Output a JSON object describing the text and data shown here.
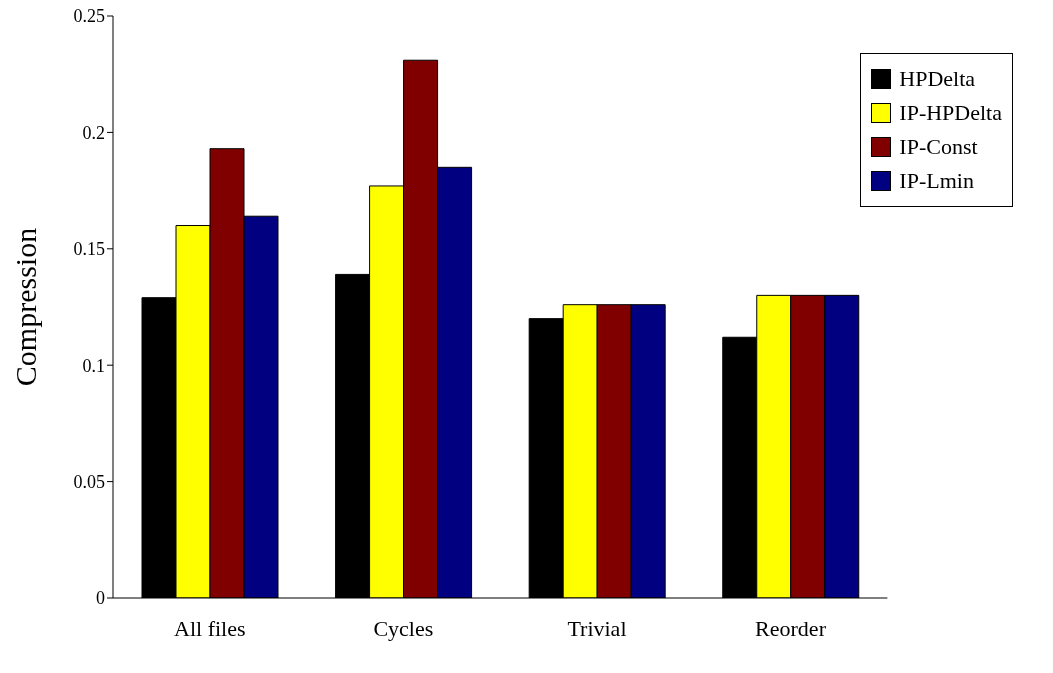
{
  "chart_data": {
    "type": "bar",
    "ylabel": "Compression",
    "categories": [
      "All files",
      "Cycles",
      "Trivial",
      "Reorder"
    ],
    "series": [
      {
        "name": "HPDelta",
        "color": "#000000",
        "values": [
          0.129,
          0.139,
          0.12,
          0.112
        ]
      },
      {
        "name": "IP-HPDelta",
        "color": "#ffff00",
        "values": [
          0.16,
          0.177,
          0.126,
          0.13
        ]
      },
      {
        "name": "IP-Const",
        "color": "#800000",
        "values": [
          0.193,
          0.231,
          0.126,
          0.13
        ]
      },
      {
        "name": "IP-Lmin",
        "color": "#000080",
        "values": [
          0.164,
          0.185,
          0.126,
          0.13
        ]
      }
    ],
    "ylim": [
      0,
      0.25
    ],
    "yticks": [
      0,
      0.05,
      0.1,
      0.15,
      0.2,
      0.25
    ],
    "grid": false,
    "legend": "top right"
  }
}
